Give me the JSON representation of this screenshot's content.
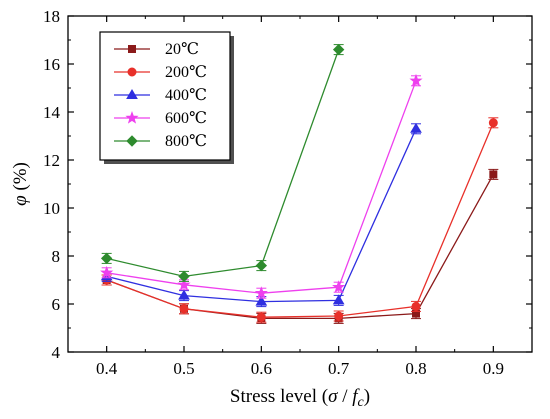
{
  "chart_data": {
    "type": "line",
    "title": "",
    "ylabel": {
      "symbol": "φ",
      "unit": " (%)"
    },
    "xlabel": {
      "prefix": "Stress level (",
      "sigma": "σ",
      "slash": " / ",
      "f": "f",
      "sub": "c",
      "suffix": ")"
    },
    "xlim": [
      0.35,
      0.95
    ],
    "ylim": [
      4,
      18
    ],
    "xticks": [
      0.4,
      0.5,
      0.6,
      0.7,
      0.8,
      0.9
    ],
    "xtick_labels": [
      "0.4",
      "0.5",
      "0.6",
      "0.7",
      "0.8",
      "0.9"
    ],
    "yticks": [
      4,
      6,
      8,
      10,
      12,
      14,
      16,
      18
    ],
    "ytick_labels": [
      "4",
      "6",
      "8",
      "10",
      "12",
      "14",
      "16",
      "18"
    ],
    "grid": false,
    "legend_position": "top-left",
    "series": [
      {
        "name": "20℃",
        "color": "#8B1A1A",
        "marker": "square",
        "x": [
          0.4,
          0.5,
          0.6,
          0.7,
          0.8,
          0.9
        ],
        "y": [
          7.0,
          5.8,
          5.4,
          5.4,
          5.6,
          11.4
        ]
      },
      {
        "name": "200℃",
        "color": "#E8302A",
        "marker": "circle",
        "x": [
          0.4,
          0.5,
          0.6,
          0.7,
          0.8,
          0.9
        ],
        "y": [
          7.0,
          5.8,
          5.45,
          5.5,
          5.9,
          13.55
        ]
      },
      {
        "name": "400℃",
        "color": "#2F2FE0",
        "marker": "triangle",
        "x": [
          0.4,
          0.5,
          0.6,
          0.7,
          0.8
        ],
        "y": [
          7.15,
          6.35,
          6.1,
          6.15,
          13.3
        ]
      },
      {
        "name": "600℃",
        "color": "#EE40EE",
        "marker": "star",
        "x": [
          0.4,
          0.5,
          0.6,
          0.7,
          0.8
        ],
        "y": [
          7.3,
          6.8,
          6.45,
          6.7,
          15.3
        ]
      },
      {
        "name": "800℃",
        "color": "#2E8B2E",
        "marker": "diamond",
        "x": [
          0.4,
          0.5,
          0.6,
          0.7
        ],
        "y": [
          7.9,
          7.15,
          7.6,
          16.6
        ]
      }
    ]
  }
}
